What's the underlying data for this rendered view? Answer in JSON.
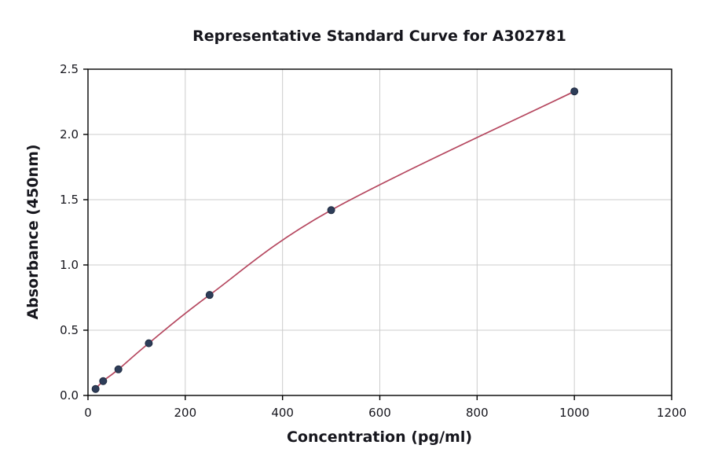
{
  "chart_data": {
    "type": "line",
    "title": "Representative Standard Curve for A302781",
    "xlabel": "Concentration (pg/ml)",
    "ylabel": "Absorbance (450nm)",
    "xlim": [
      0,
      1200
    ],
    "ylim": [
      0,
      2.5
    ],
    "xticks": [
      0,
      200,
      400,
      600,
      800,
      1000,
      1200
    ],
    "xtick_labels": [
      "0",
      "200",
      "400",
      "600",
      "800",
      "1000",
      "1200"
    ],
    "yticks": [
      0,
      0.5,
      1.0,
      1.5,
      2.0,
      2.5
    ],
    "ytick_labels": [
      "0.0",
      "0.5",
      "1.0",
      "1.5",
      "2.0",
      "2.5"
    ],
    "grid": true,
    "legend": "none",
    "x": [
      15.6,
      31.2,
      62.5,
      125,
      250,
      500,
      1000
    ],
    "y": [
      0.05,
      0.11,
      0.2,
      0.4,
      0.77,
      1.42,
      2.33
    ],
    "colors": {
      "line": "#b5475f",
      "marker_fill": "#2e3d59",
      "marker_edge": "#1f2b40",
      "grid": "#cccccc",
      "axis": "#000000",
      "text": "#16161d"
    }
  }
}
